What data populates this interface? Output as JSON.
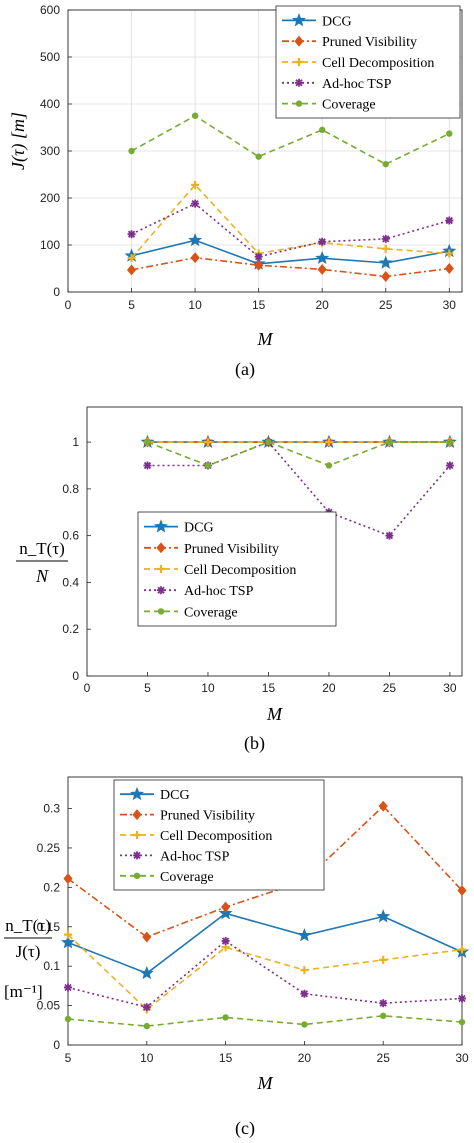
{
  "charts": [
    {
      "id": "a",
      "caption": "(a)",
      "chart_data": {
        "type": "line",
        "x": [
          5,
          10,
          15,
          20,
          25,
          30
        ],
        "xlim": [
          0,
          31
        ],
        "ylim": [
          0,
          600
        ],
        "xticks": [
          0,
          5,
          10,
          15,
          20,
          25,
          30
        ],
        "yticks": [
          0,
          100,
          200,
          300,
          400,
          500,
          600
        ],
        "ytick_labels": [
          "0",
          "100",
          "200",
          "300",
          "400",
          "500",
          "600"
        ],
        "xlabel": "M",
        "ylabel": "J(τ) [m]",
        "grid": true,
        "legend_position": "top-right",
        "series": [
          {
            "name": "DCG",
            "color": "#1f77b4",
            "marker": "star",
            "dash": "solid",
            "values": [
              77,
              110,
              60,
              72,
              62,
              87
            ]
          },
          {
            "name": "Pruned Visibility",
            "color": "#d95319",
            "marker": "diamond",
            "dash": "dashdot",
            "values": [
              47,
              73,
              57,
              48,
              33,
              50
            ]
          },
          {
            "name": "Cell Decomposition",
            "color": "#edb120",
            "marker": "plus",
            "dash": "dash",
            "values": [
              72,
              228,
              82,
              105,
              92,
              82
            ]
          },
          {
            "name": "Ad-hoc TSP",
            "color": "#7e2f8e",
            "marker": "star6",
            "dash": "dot",
            "values": [
              123,
              188,
              75,
              107,
              113,
              152
            ]
          },
          {
            "name": "Coverage",
            "color": "#77ac30",
            "marker": "circle",
            "dash": "dash",
            "values": [
              300,
              375,
              288,
              345,
              272,
              337
            ]
          }
        ]
      }
    },
    {
      "id": "b",
      "caption": "(b)",
      "chart_data": {
        "type": "line",
        "x": [
          5,
          10,
          15,
          20,
          25,
          30
        ],
        "xlim": [
          0,
          31
        ],
        "ylim": [
          0,
          1.15
        ],
        "xticks": [
          0,
          5,
          10,
          15,
          20,
          25,
          30
        ],
        "yticks": [
          0,
          0.2,
          0.4,
          0.6,
          0.8,
          1
        ],
        "ytick_labels": [
          "0",
          "0.2",
          "0.4",
          "0.6",
          "0.8",
          "1"
        ],
        "xlabel": "M",
        "ylabel_numerator": "n_T(τ)",
        "ylabel_denominator": "N",
        "grid": false,
        "legend_position": "center-left",
        "series": [
          {
            "name": "DCG",
            "color": "#1f77b4",
            "marker": "star",
            "dash": "solid",
            "values": [
              1,
              1,
              1,
              1,
              1,
              1
            ]
          },
          {
            "name": "Pruned Visibility",
            "color": "#d95319",
            "marker": "diamond",
            "dash": "dashdot",
            "values": [
              1,
              1,
              1,
              1,
              1,
              1
            ]
          },
          {
            "name": "Cell Decomposition",
            "color": "#edb120",
            "marker": "plus",
            "dash": "dash",
            "values": [
              1,
              1,
              1,
              1,
              1,
              1
            ]
          },
          {
            "name": "Ad-hoc TSP",
            "color": "#7e2f8e",
            "marker": "star6",
            "dash": "dot",
            "values": [
              0.9,
              0.9,
              1,
              0.7,
              0.6,
              0.9
            ]
          },
          {
            "name": "Coverage",
            "color": "#77ac30",
            "marker": "circle",
            "dash": "dash",
            "values": [
              1,
              0.9,
              1,
              0.9,
              1,
              1
            ]
          }
        ]
      }
    },
    {
      "id": "c",
      "caption": "(c)",
      "chart_data": {
        "type": "line",
        "x": [
          5,
          10,
          15,
          20,
          25,
          30
        ],
        "xlim": [
          5,
          30
        ],
        "ylim": [
          0,
          0.34
        ],
        "xticks": [
          5,
          10,
          15,
          20,
          25,
          30
        ],
        "yticks": [
          0,
          0.05,
          0.1,
          0.15,
          0.2,
          0.25,
          0.3
        ],
        "ytick_labels": [
          "0",
          "0.05",
          "0.1",
          "0.15",
          "0.2",
          "0.25",
          "0.3"
        ],
        "xlabel": "M",
        "ylabel_numerator": "n_T(τ)",
        "ylabel_denominator": "J(τ)",
        "ylabel_unit": "[m⁻¹]",
        "grid": false,
        "legend_position": "top-left",
        "series": [
          {
            "name": "DCG",
            "color": "#1f77b4",
            "marker": "star",
            "dash": "solid",
            "values": [
              0.13,
              0.091,
              0.167,
              0.139,
              0.163,
              0.118
            ]
          },
          {
            "name": "Pruned Visibility",
            "color": "#d95319",
            "marker": "diamond",
            "dash": "dashdot",
            "values": [
              0.211,
              0.137,
              0.175,
              0.208,
              0.303,
              0.196
            ]
          },
          {
            "name": "Cell Decomposition",
            "color": "#edb120",
            "marker": "plus",
            "dash": "dash",
            "values": [
              0.14,
              0.045,
              0.124,
              0.095,
              0.108,
              0.121
            ]
          },
          {
            "name": "Ad-hoc TSP",
            "color": "#7e2f8e",
            "marker": "star6",
            "dash": "dot",
            "values": [
              0.073,
              0.048,
              0.132,
              0.065,
              0.053,
              0.059
            ]
          },
          {
            "name": "Coverage",
            "color": "#77ac30",
            "marker": "circle",
            "dash": "dash",
            "values": [
              0.033,
              0.024,
              0.035,
              0.026,
              0.037,
              0.029
            ]
          }
        ]
      }
    }
  ]
}
